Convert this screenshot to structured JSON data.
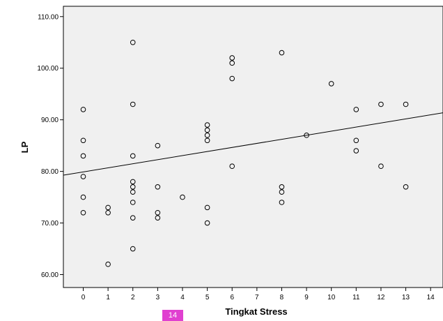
{
  "page_badge": "14",
  "chart_data": {
    "type": "scatter",
    "title": "",
    "xlabel": "Tingkat Stress",
    "ylabel": "LP",
    "xlim": [
      -0.8,
      14.5
    ],
    "ylim": [
      57.5,
      112
    ],
    "xticks": [
      "0",
      "1",
      "2",
      "3",
      "4",
      "5",
      "6",
      "7",
      "8",
      "9",
      "10",
      "11",
      "12",
      "13",
      "14"
    ],
    "yticks": [
      "60.00",
      "70.00",
      "80.00",
      "90.00",
      "100.00",
      "110.00"
    ],
    "grid": false,
    "plot_background": "#f0f0f0",
    "marker_color": "#000000",
    "points": [
      {
        "x": 0,
        "y": 92
      },
      {
        "x": 0,
        "y": 86
      },
      {
        "x": 0,
        "y": 83
      },
      {
        "x": 0,
        "y": 79
      },
      {
        "x": 0,
        "y": 75
      },
      {
        "x": 0,
        "y": 72
      },
      {
        "x": 1,
        "y": 73
      },
      {
        "x": 1,
        "y": 72
      },
      {
        "x": 1,
        "y": 62
      },
      {
        "x": 2,
        "y": 105
      },
      {
        "x": 2,
        "y": 93
      },
      {
        "x": 2,
        "y": 83
      },
      {
        "x": 2,
        "y": 78
      },
      {
        "x": 2,
        "y": 77
      },
      {
        "x": 2,
        "y": 76
      },
      {
        "x": 2,
        "y": 74
      },
      {
        "x": 2,
        "y": 71
      },
      {
        "x": 2,
        "y": 65
      },
      {
        "x": 3,
        "y": 85
      },
      {
        "x": 3,
        "y": 77
      },
      {
        "x": 3,
        "y": 72
      },
      {
        "x": 3,
        "y": 71
      },
      {
        "x": 4,
        "y": 75
      },
      {
        "x": 5,
        "y": 89
      },
      {
        "x": 5,
        "y": 88
      },
      {
        "x": 5,
        "y": 87
      },
      {
        "x": 5,
        "y": 86
      },
      {
        "x": 5,
        "y": 73
      },
      {
        "x": 5,
        "y": 70
      },
      {
        "x": 6,
        "y": 102
      },
      {
        "x": 6,
        "y": 101
      },
      {
        "x": 6,
        "y": 98
      },
      {
        "x": 6,
        "y": 81
      },
      {
        "x": 8,
        "y": 103
      },
      {
        "x": 8,
        "y": 77
      },
      {
        "x": 8,
        "y": 76
      },
      {
        "x": 8,
        "y": 74
      },
      {
        "x": 9,
        "y": 87
      },
      {
        "x": 10,
        "y": 97
      },
      {
        "x": 11,
        "y": 92
      },
      {
        "x": 11,
        "y": 86
      },
      {
        "x": 11,
        "y": 84
      },
      {
        "x": 12,
        "y": 93
      },
      {
        "x": 12,
        "y": 81
      },
      {
        "x": 13,
        "y": 93
      },
      {
        "x": 13,
        "y": 77
      }
    ],
    "fit_line": {
      "intercept": 79.9,
      "slope": 0.79
    }
  }
}
